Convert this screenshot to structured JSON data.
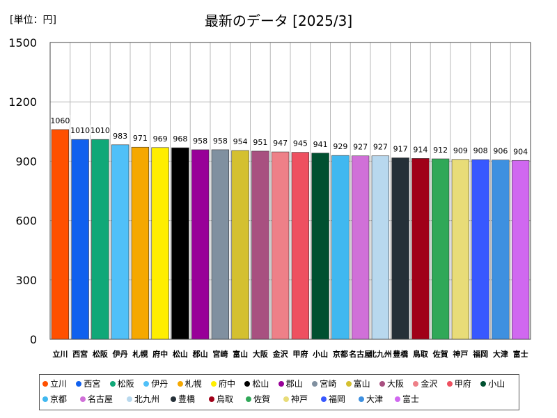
{
  "chart_data": {
    "type": "bar",
    "title": "最新のデータ [2025/3]",
    "unit_label": "[単位：円]",
    "ylim": [
      0,
      1500
    ],
    "yticks": [
      0,
      300,
      600,
      900,
      1200,
      1500
    ],
    "grid": true,
    "legend_position": "bottom",
    "categories": [
      "立川",
      "西宮",
      "松阪",
      "伊丹",
      "札幌",
      "府中",
      "松山",
      "郡山",
      "宮崎",
      "富山",
      "大阪",
      "金沢",
      "甲府",
      "小山",
      "京都",
      "名古屋",
      "北九州",
      "豊橋",
      "鳥取",
      "佐賀",
      "神戸",
      "福岡",
      "大津",
      "富士"
    ],
    "values": [
      1060,
      1010,
      1010,
      983,
      971,
      969,
      968,
      958,
      958,
      954,
      951,
      947,
      945,
      941,
      929,
      927,
      927,
      917,
      914,
      912,
      909,
      908,
      906,
      904
    ],
    "value_labels": [
      "1060",
      "1010",
      "1010",
      "983",
      "971",
      "969",
      "968",
      "958",
      "958",
      "954",
      "951",
      "947",
      "945",
      "941",
      "929",
      "927",
      "927",
      "917",
      "914",
      "912",
      "909",
      "908",
      "906",
      "904"
    ],
    "colors": [
      "#ff5000",
      "#1060ee",
      "#10a878",
      "#50c0f8",
      "#f5a800",
      "#ffee00",
      "#000000",
      "#980098",
      "#8090a0",
      "#d4c030",
      "#a85080",
      "#ee8088",
      "#ee5060",
      "#005030",
      "#40b8f0",
      "#d070d8",
      "#b8d8ee",
      "#253038",
      "#a00018",
      "#30a858",
      "#e8dc78",
      "#3858ff",
      "#3e90e0",
      "#d068f0"
    ]
  }
}
